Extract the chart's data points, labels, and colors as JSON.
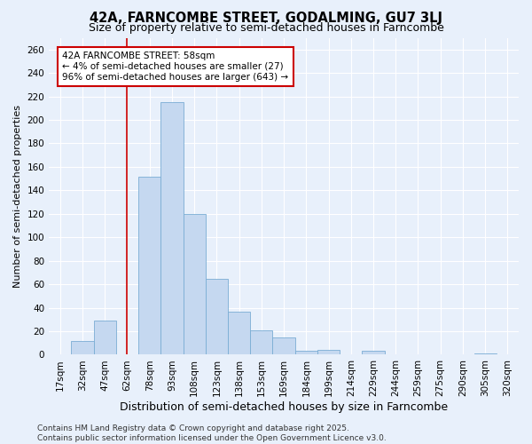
{
  "title": "42A, FARNCOMBE STREET, GODALMING, GU7 3LJ",
  "subtitle": "Size of property relative to semi-detached houses in Farncombe",
  "xlabel": "Distribution of semi-detached houses by size in Farncombe",
  "ylabel": "Number of semi-detached properties",
  "categories": [
    "17sqm",
    "32sqm",
    "47sqm",
    "62sqm",
    "78sqm",
    "93sqm",
    "108sqm",
    "123sqm",
    "138sqm",
    "153sqm",
    "169sqm",
    "184sqm",
    "199sqm",
    "214sqm",
    "229sqm",
    "244sqm",
    "259sqm",
    "275sqm",
    "290sqm",
    "305sqm",
    "320sqm"
  ],
  "values": [
    0,
    12,
    29,
    0,
    152,
    215,
    120,
    65,
    37,
    21,
    15,
    3,
    4,
    0,
    3,
    0,
    0,
    0,
    0,
    1,
    0
  ],
  "bar_color": "#c5d8f0",
  "bar_edge_color": "#7aadd4",
  "background_color": "#e8f0fb",
  "grid_color": "#ffffff",
  "red_line_index": 3,
  "red_line_color": "#cc0000",
  "annotation_text": "42A FARNCOMBE STREET: 58sqm\n← 4% of semi-detached houses are smaller (27)\n96% of semi-detached houses are larger (643) →",
  "annotation_box_facecolor": "#ffffff",
  "annotation_box_edgecolor": "#cc0000",
  "ylim": [
    0,
    270
  ],
  "yticks": [
    0,
    20,
    40,
    60,
    80,
    100,
    120,
    140,
    160,
    180,
    200,
    220,
    240,
    260
  ],
  "footer": "Contains HM Land Registry data © Crown copyright and database right 2025.\nContains public sector information licensed under the Open Government Licence v3.0.",
  "title_fontsize": 10.5,
  "subtitle_fontsize": 9,
  "xlabel_fontsize": 9,
  "ylabel_fontsize": 8,
  "tick_fontsize": 7.5,
  "annotation_fontsize": 7.5,
  "footer_fontsize": 6.5
}
